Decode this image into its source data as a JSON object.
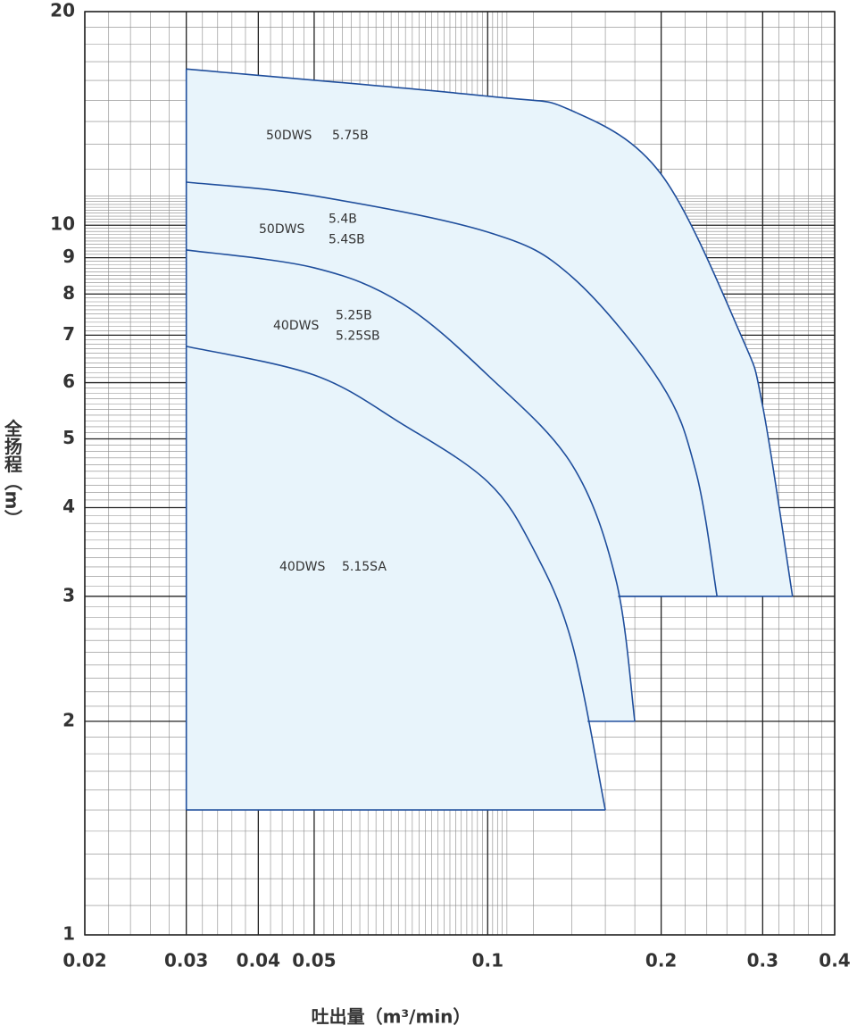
{
  "chart_data": {
    "type": "line",
    "x_label": "吐出量（m³/min）",
    "y_label": "全扬程（m）",
    "xlog": true,
    "ylog": true,
    "grid": true,
    "minor_grid": true,
    "fill_color": "#e8f4fb",
    "xlim": [
      0.02,
      0.4
    ],
    "xticks": [
      0.02,
      0.03,
      0.04,
      0.05,
      0.1,
      0.2,
      0.3,
      0.4
    ],
    "ylim": [
      1,
      20
    ],
    "yticks": [
      1,
      2,
      3,
      4,
      5,
      6,
      7,
      8,
      9,
      10,
      20
    ],
    "series": [
      {
        "name": "50DWS",
        "models": [
          "5.75B"
        ],
        "color": "#1f4e9c",
        "floor": 3,
        "x": [
          0.03,
          0.1,
          0.14,
          0.2,
          0.275,
          0.3,
          0.338
        ],
        "values": [
          16.6,
          15.2,
          14.5,
          11.8,
          7.0,
          5.56,
          3
        ]
      },
      {
        "name": "50DWS",
        "models": [
          "5.4B",
          "5.4SB"
        ],
        "color": "#1f4e9c",
        "floor": 3,
        "x": [
          0.03,
          0.05,
          0.1,
          0.14,
          0.2,
          0.23,
          0.25
        ],
        "values": [
          11.5,
          11.0,
          9.78,
          8.46,
          5.98,
          4.48,
          3
        ]
      },
      {
        "name": "40DWS",
        "models": [
          "5.25B",
          "5.25SB"
        ],
        "color": "#1f4e9c",
        "floor": 2,
        "x": [
          0.03,
          0.05,
          0.071,
          0.1,
          0.14,
          0.167,
          0.18
        ],
        "values": [
          9.23,
          8.71,
          7.76,
          6.15,
          4.6,
          3.16,
          2
        ]
      },
      {
        "name": "40DWS",
        "models": [
          "5.15SA"
        ],
        "color": "#1f4e9c",
        "floor": 1.5,
        "x": [
          0.03,
          0.05,
          0.071,
          0.1,
          0.12,
          0.14,
          0.16
        ],
        "values": [
          6.75,
          6.15,
          5.25,
          4.35,
          3.5,
          2.58,
          1.5
        ]
      }
    ]
  }
}
